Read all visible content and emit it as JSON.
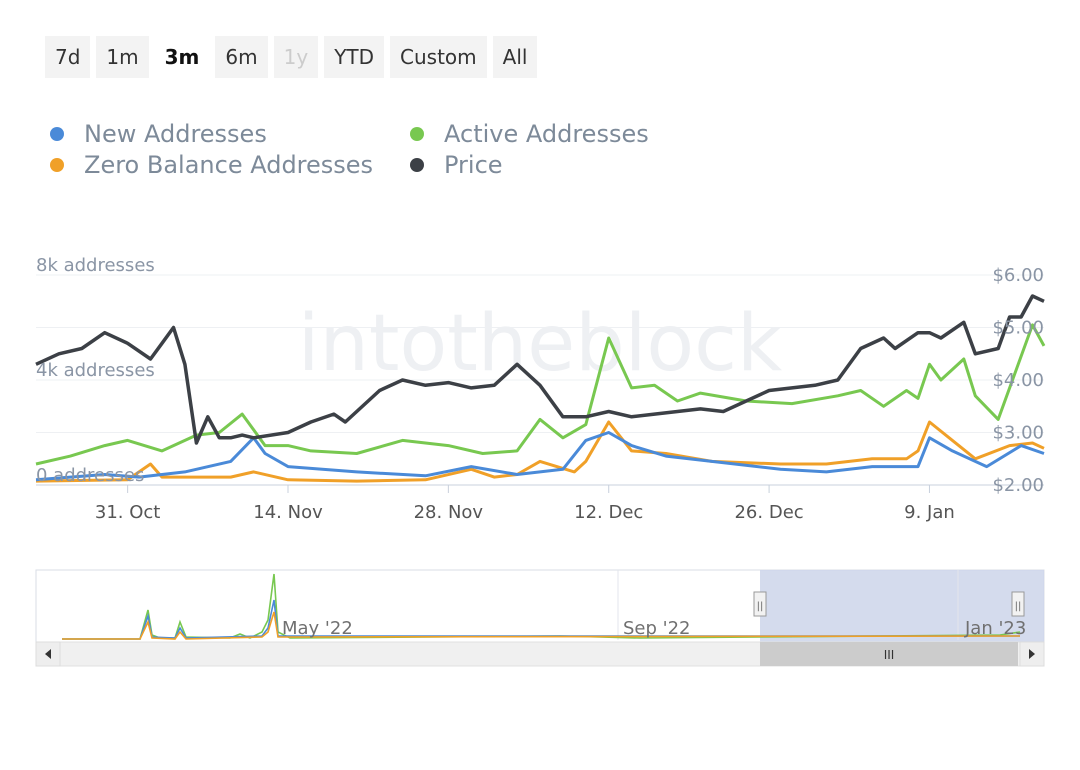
{
  "range_buttons": [
    {
      "label": "7d",
      "state": "normal"
    },
    {
      "label": "1m",
      "state": "normal"
    },
    {
      "label": "3m",
      "state": "active"
    },
    {
      "label": "6m",
      "state": "normal"
    },
    {
      "label": "1y",
      "state": "disabled"
    },
    {
      "label": "YTD",
      "state": "normal"
    },
    {
      "label": "Custom",
      "state": "normal"
    },
    {
      "label": "All",
      "state": "normal"
    }
  ],
  "watermark": "intotheblock",
  "navigator": {
    "date_labels": [
      "May '22",
      "Sep '22",
      "Jan '23"
    ],
    "scroll_grip": "III",
    "handle_grip": "||"
  },
  "chart_data": {
    "type": "line",
    "legend_position": "top-left",
    "grid": true,
    "x_ticks": [
      "31. Oct",
      "14. Nov",
      "28. Nov",
      "12. Dec",
      "26. Dec",
      "9. Jan"
    ],
    "x_tick_dates": [
      "2022-10-31",
      "2022-11-14",
      "2022-11-28",
      "2022-12-12",
      "2022-12-26",
      "2023-01-09"
    ],
    "x_range": [
      "2022-10-23",
      "2023-01-19"
    ],
    "left_axis": {
      "ticks": [
        "0 addresses",
        "4k addresses",
        "8k addresses"
      ],
      "tick_values": [
        0,
        4000,
        8000
      ],
      "range": [
        0,
        8000
      ]
    },
    "right_axis": {
      "ticks": [
        "$2.00",
        "$3.00",
        "$4.00",
        "$5.00",
        "$6.00"
      ],
      "tick_values": [
        2,
        3,
        4,
        5,
        6
      ],
      "range": [
        2,
        6
      ]
    },
    "series": [
      {
        "name": "New Addresses",
        "color": "#4a8ad8",
        "axis": "left",
        "x": [
          "2022-10-23",
          "2022-10-29",
          "2022-11-01",
          "2022-11-05",
          "2022-11-09",
          "2022-11-11",
          "2022-11-12",
          "2022-11-14",
          "2022-11-20",
          "2022-11-26",
          "2022-11-30",
          "2022-12-04",
          "2022-12-08",
          "2022-12-10",
          "2022-12-12",
          "2022-12-14",
          "2022-12-17",
          "2022-12-21",
          "2022-12-27",
          "2022-12-31",
          "2023-01-04",
          "2023-01-08",
          "2023-01-09",
          "2023-01-11",
          "2023-01-14",
          "2023-01-17",
          "2023-01-19"
        ],
        "values": [
          200,
          400,
          300,
          500,
          900,
          1800,
          1200,
          700,
          500,
          350,
          700,
          400,
          600,
          1700,
          2000,
          1500,
          1100,
          900,
          600,
          500,
          700,
          700,
          1800,
          1300,
          700,
          1500,
          1200
        ]
      },
      {
        "name": "Active Addresses",
        "color": "#78c850",
        "axis": "left",
        "x": [
          "2022-10-23",
          "2022-10-26",
          "2022-10-29",
          "2022-10-31",
          "2022-11-03",
          "2022-11-06",
          "2022-11-08",
          "2022-11-10",
          "2022-11-12",
          "2022-11-14",
          "2022-11-16",
          "2022-11-20",
          "2022-11-24",
          "2022-11-28",
          "2022-12-01",
          "2022-12-04",
          "2022-12-06",
          "2022-12-08",
          "2022-12-10",
          "2022-12-12",
          "2022-12-14",
          "2022-12-16",
          "2022-12-18",
          "2022-12-20",
          "2022-12-24",
          "2022-12-28",
          "2023-01-01",
          "2023-01-03",
          "2023-01-05",
          "2023-01-07",
          "2023-01-08",
          "2023-01-09",
          "2023-01-10",
          "2023-01-12",
          "2023-01-13",
          "2023-01-15",
          "2023-01-18",
          "2023-01-19"
        ],
        "values": [
          800,
          1100,
          1500,
          1700,
          1300,
          1900,
          2000,
          2700,
          1500,
          1500,
          1300,
          1200,
          1700,
          1500,
          1200,
          1300,
          2500,
          1800,
          2300,
          5600,
          3700,
          3800,
          3200,
          3500,
          3200,
          3100,
          3400,
          3600,
          3000,
          3600,
          3300,
          4600,
          4000,
          4800,
          3400,
          2500,
          6100,
          5300
        ]
      },
      {
        "name": "Zero Balance Addresses",
        "color": "#f0a028",
        "axis": "left",
        "x": [
          "2022-10-23",
          "2022-10-31",
          "2022-11-02",
          "2022-11-03",
          "2022-11-09",
          "2022-11-11",
          "2022-11-14",
          "2022-11-20",
          "2022-11-26",
          "2022-11-30",
          "2022-12-02",
          "2022-12-04",
          "2022-12-06",
          "2022-12-09",
          "2022-12-10",
          "2022-12-12",
          "2022-12-14",
          "2022-12-17",
          "2022-12-21",
          "2022-12-27",
          "2022-12-31",
          "2023-01-04",
          "2023-01-07",
          "2023-01-08",
          "2023-01-09",
          "2023-01-11",
          "2023-01-13",
          "2023-01-16",
          "2023-01-18",
          "2023-01-19"
        ],
        "values": [
          150,
          200,
          800,
          300,
          300,
          500,
          200,
          150,
          200,
          600,
          300,
          400,
          900,
          500,
          900,
          2400,
          1300,
          1200,
          900,
          800,
          800,
          1000,
          1000,
          1300,
          2400,
          1700,
          1000,
          1500,
          1600,
          1400
        ]
      },
      {
        "name": "Price",
        "color": "#3c4046",
        "axis": "right",
        "x": [
          "2022-10-23",
          "2022-10-25",
          "2022-10-27",
          "2022-10-29",
          "2022-10-31",
          "2022-11-02",
          "2022-11-03",
          "2022-11-04",
          "2022-11-05",
          "2022-11-06",
          "2022-11-07",
          "2022-11-08",
          "2022-11-09",
          "2022-11-10",
          "2022-11-11",
          "2022-11-14",
          "2022-11-16",
          "2022-11-18",
          "2022-11-19",
          "2022-11-22",
          "2022-11-24",
          "2022-11-26",
          "2022-11-28",
          "2022-11-30",
          "2022-12-02",
          "2022-12-04",
          "2022-12-06",
          "2022-12-08",
          "2022-12-10",
          "2022-12-12",
          "2022-12-14",
          "2022-12-16",
          "2022-12-18",
          "2022-12-20",
          "2022-12-22",
          "2022-12-26",
          "2022-12-30",
          "2023-01-01",
          "2023-01-03",
          "2023-01-05",
          "2023-01-06",
          "2023-01-08",
          "2023-01-09",
          "2023-01-10",
          "2023-01-12",
          "2023-01-13",
          "2023-01-15",
          "2023-01-16",
          "2023-01-17",
          "2023-01-18",
          "2023-01-19"
        ],
        "values": [
          4.3,
          4.5,
          4.6,
          4.9,
          4.7,
          4.4,
          4.7,
          5.0,
          4.3,
          2.8,
          3.3,
          2.9,
          2.9,
          2.95,
          2.9,
          3.0,
          3.2,
          3.35,
          3.2,
          3.8,
          4.0,
          3.9,
          3.95,
          3.85,
          3.9,
          4.3,
          3.9,
          3.3,
          3.3,
          3.4,
          3.3,
          3.35,
          3.4,
          3.45,
          3.4,
          3.8,
          3.9,
          4.0,
          4.6,
          4.8,
          4.6,
          4.9,
          4.9,
          4.8,
          5.1,
          4.5,
          4.6,
          5.2,
          5.2,
          5.6,
          5.5
        ]
      }
    ]
  }
}
